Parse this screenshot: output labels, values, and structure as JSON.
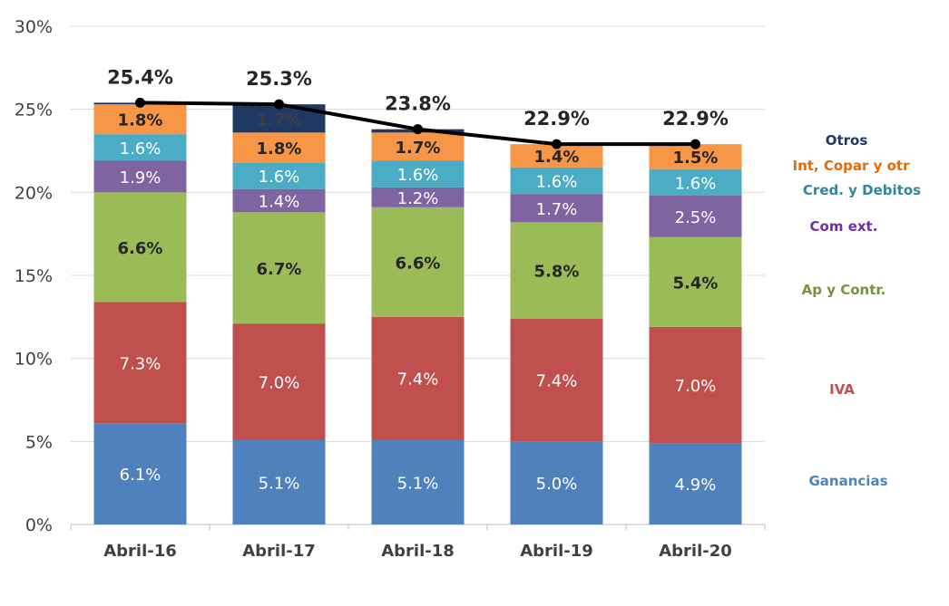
{
  "chart_data": {
    "type": "bar",
    "stacked": true,
    "title": "",
    "xlabel": "",
    "ylabel": "",
    "ylim": [
      0,
      30
    ],
    "y_ticks": [
      "0%",
      "5%",
      "10%",
      "15%",
      "20%",
      "25%",
      "30%"
    ],
    "grid": true,
    "categories": [
      "Abril-16",
      "Abril-17",
      "Abril-18",
      "Abril-19",
      "Abril-20"
    ],
    "series": [
      {
        "name": "Ganancias",
        "color": "#4f81bd",
        "label_color": "#ffffff",
        "values": [
          6.1,
          5.1,
          5.1,
          5.0,
          4.9
        ],
        "labels": [
          "6.1%",
          "5.1%",
          "5.1%",
          "5.0%",
          "4.9%"
        ]
      },
      {
        "name": "IVA",
        "color": "#c0504d",
        "label_color": "#ffffff",
        "values": [
          7.3,
          7.0,
          7.4,
          7.4,
          7.0
        ],
        "labels": [
          "7.3%",
          "7.0%",
          "7.4%",
          "7.4%",
          "7.0%"
        ]
      },
      {
        "name": "Ap y Contr.",
        "color": "#9bbb59",
        "label_color": "#262626",
        "values": [
          6.6,
          6.7,
          6.6,
          5.8,
          5.4
        ],
        "labels": [
          "6.6%",
          "6.7%",
          "6.6%",
          "5.8%",
          "5.4%"
        ]
      },
      {
        "name": "Com ext.",
        "color": "#8064a2",
        "label_color": "#ffffff",
        "values": [
          1.9,
          1.4,
          1.2,
          1.7,
          2.5
        ],
        "labels": [
          "1.9%",
          "1.4%",
          "1.2%",
          "1.7%",
          "2.5%"
        ]
      },
      {
        "name": "Cred. y Debitos",
        "color": "#4bacc6",
        "label_color": "#ffffff",
        "values": [
          1.6,
          1.6,
          1.6,
          1.6,
          1.6
        ],
        "labels": [
          "1.6%",
          "1.6%",
          "1.6%",
          "1.6%",
          "1.6%"
        ]
      },
      {
        "name": "Int, Copar y otr",
        "color": "#f79646",
        "label_color": "#262626",
        "values": [
          1.8,
          1.8,
          1.7,
          1.4,
          1.5
        ],
        "labels": [
          "1.8%",
          "1.8%",
          "1.7%",
          "1.4%",
          "1.5%"
        ]
      },
      {
        "name": "Otros",
        "color": "#1f3864",
        "label_color": "#404040",
        "values": [
          0.1,
          1.7,
          0.2,
          0.0,
          0.0
        ],
        "labels": [
          "",
          "1.7%",
          "",
          "",
          ""
        ]
      }
    ],
    "totals": {
      "values": [
        25.4,
        25.3,
        23.8,
        22.9,
        22.9
      ],
      "labels": [
        "25.4%",
        "25.3%",
        "23.8%",
        "22.9%",
        "22.9%"
      ],
      "line_color": "#000000"
    },
    "legend_placement": "right",
    "legend_colors": {
      "Otros": "#1f3864",
      "Int, Copar y otr": "#e36c09",
      "Cred. y Debitos": "#31859c",
      "Com ext.": "#7030a0",
      "Ap y Contr.": "#76923c",
      "IVA": "#c0504d",
      "Ganancias": "#4f81bd"
    }
  }
}
